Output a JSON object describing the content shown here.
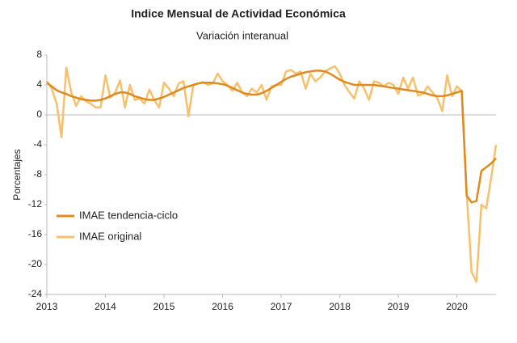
{
  "chart_data": {
    "type": "line",
    "title": "Indice Mensual de  Actividad Económica",
    "subtitle": "Variación interanual",
    "y_label": "Porcentajes",
    "x": [
      2013,
      2013.083,
      2013.167,
      2013.25,
      2013.333,
      2013.417,
      2013.5,
      2013.583,
      2013.667,
      2013.75,
      2013.833,
      2013.917,
      2014,
      2014.083,
      2014.167,
      2014.25,
      2014.333,
      2014.417,
      2014.5,
      2014.583,
      2014.667,
      2014.75,
      2014.833,
      2014.917,
      2015,
      2015.083,
      2015.167,
      2015.25,
      2015.333,
      2015.417,
      2015.5,
      2015.583,
      2015.667,
      2015.75,
      2015.833,
      2015.917,
      2016,
      2016.083,
      2016.167,
      2016.25,
      2016.333,
      2016.417,
      2016.5,
      2016.583,
      2016.667,
      2016.75,
      2016.833,
      2016.917,
      2017,
      2017.083,
      2017.167,
      2017.25,
      2017.333,
      2017.417,
      2017.5,
      2017.583,
      2017.667,
      2017.75,
      2017.833,
      2017.917,
      2018,
      2018.083,
      2018.167,
      2018.25,
      2018.333,
      2018.417,
      2018.5,
      2018.583,
      2018.667,
      2018.75,
      2018.833,
      2018.917,
      2019,
      2019.083,
      2019.167,
      2019.25,
      2019.333,
      2019.417,
      2019.5,
      2019.583,
      2019.667,
      2019.75,
      2019.833,
      2019.917,
      2020,
      2020.083,
      2020.167,
      2020.25,
      2020.333,
      2020.417,
      2020.5,
      2020.583,
      2020.667
    ],
    "series": [
      {
        "name": "IMAE tendencia-ciclo",
        "color": "#e08a1e",
        "width": 2.5,
        "values": [
          4.3,
          3.8,
          3.3,
          3.0,
          2.8,
          2.5,
          2.3,
          2.1,
          2.0,
          1.9,
          1.9,
          2.0,
          2.2,
          2.5,
          2.8,
          3.0,
          3.0,
          2.8,
          2.5,
          2.3,
          2.1,
          2.0,
          2.0,
          2.2,
          2.4,
          2.7,
          3.0,
          3.3,
          3.6,
          3.8,
          4.0,
          4.2,
          4.3,
          4.3,
          4.3,
          4.2,
          4.1,
          3.9,
          3.6,
          3.3,
          3.0,
          2.8,
          2.7,
          2.7,
          2.9,
          3.2,
          3.6,
          4.0,
          4.4,
          4.8,
          5.1,
          5.3,
          5.5,
          5.7,
          5.8,
          5.9,
          5.9,
          5.8,
          5.5,
          5.1,
          4.7,
          4.4,
          4.2,
          4.0,
          4.0,
          4.0,
          4.0,
          4.0,
          3.9,
          3.8,
          3.7,
          3.6,
          3.5,
          3.4,
          3.3,
          3.2,
          3.1,
          3.0,
          2.8,
          2.6,
          2.5,
          2.5,
          2.6,
          2.8,
          3.0,
          3.2,
          -10.8,
          -11.7,
          -11.5,
          -7.5,
          -7.0,
          -6.5,
          -5.8
        ]
      },
      {
        "name": "IMAE original",
        "color": "#f8c06a",
        "width": 2.5,
        "values": [
          4.5,
          3.5,
          1.5,
          -3.0,
          6.3,
          3.0,
          1.2,
          2.5,
          1.8,
          1.5,
          1.0,
          1.0,
          5.3,
          2.3,
          3.0,
          4.6,
          1.0,
          4.0,
          2.0,
          2.2,
          1.5,
          3.4,
          2.0,
          1.0,
          4.3,
          3.5,
          2.5,
          4.2,
          4.5,
          -0.2,
          4.0,
          4.2,
          4.4,
          4.0,
          4.2,
          5.5,
          4.5,
          4.0,
          3.2,
          4.3,
          3.0,
          2.5,
          3.5,
          3.0,
          4.0,
          2.0,
          3.8,
          4.0,
          4.0,
          5.8,
          6.0,
          5.5,
          5.8,
          3.5,
          5.5,
          4.5,
          5.0,
          5.8,
          6.2,
          6.5,
          5.5,
          4.0,
          3.0,
          2.2,
          4.5,
          3.5,
          2.0,
          4.5,
          4.3,
          3.8,
          4.3,
          4.0,
          2.8,
          5.0,
          3.5,
          5.0,
          2.6,
          2.8,
          3.8,
          3.0,
          2.2,
          0.5,
          5.3,
          2.5,
          3.8,
          3.2,
          -10.5,
          -21.0,
          -22.3,
          -12.0,
          -12.5,
          -8.5,
          -4.0
        ]
      }
    ],
    "xlim": [
      2013,
      2020.667
    ],
    "xticks": [
      2013,
      2014,
      2015,
      2016,
      2017,
      2018,
      2019,
      2020
    ],
    "ylim": [
      -24,
      8
    ],
    "yticks": [
      -24,
      -20,
      -16,
      -12,
      -8,
      -4,
      0,
      4,
      8
    ],
    "grid": false,
    "legend": "left"
  }
}
